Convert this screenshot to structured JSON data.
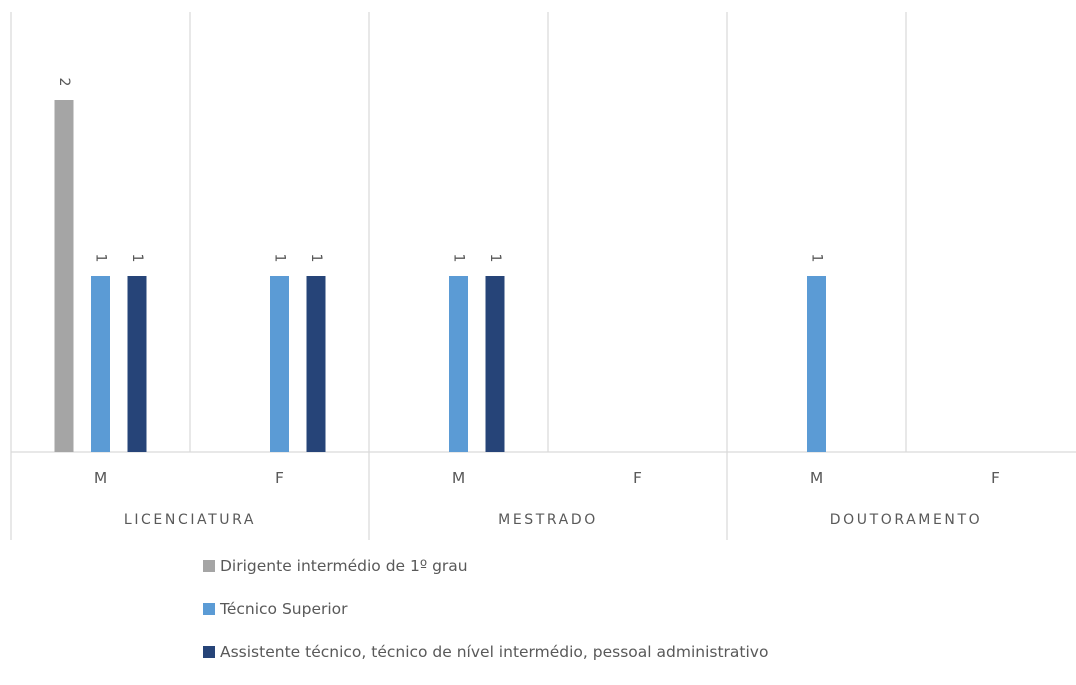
{
  "chart_data": {
    "type": "bar",
    "groups": [
      {
        "label": "LICENCIATURA",
        "categories": [
          "M",
          "F"
        ]
      },
      {
        "label": "MESTRADO",
        "categories": [
          "M",
          "F"
        ]
      },
      {
        "label": "DOUTORAMENTO",
        "categories": [
          "M",
          "F"
        ]
      }
    ],
    "categories": [
      "M",
      "F",
      "M",
      "F",
      "M",
      "F"
    ],
    "series": [
      {
        "name": "Dirigente intermédio de 1º grau",
        "color": "#a5a5a5",
        "values": [
          2,
          0,
          0,
          0,
          0,
          0
        ]
      },
      {
        "name": "Técnico Superior",
        "color": "#5b9bd5",
        "values": [
          1,
          1,
          1,
          0,
          1,
          0
        ]
      },
      {
        "name": "Assistente técnico, técnico de nível intermédio, pessoal administrativo",
        "color": "#264478",
        "values": [
          1,
          1,
          1,
          0,
          0,
          0
        ]
      }
    ],
    "data_labels": true,
    "data_label_rotation": "vertical",
    "ylim": [
      0,
      2.5
    ],
    "y_axis_visible": false,
    "grid": "vertical-separators",
    "legend_position": "bottom"
  }
}
